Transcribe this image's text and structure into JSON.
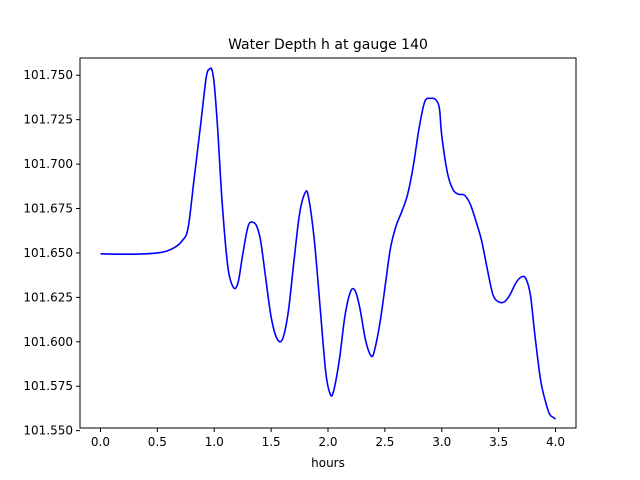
{
  "chart_data": {
    "type": "line",
    "title": "Water Depth h at gauge 140",
    "xlabel": "hours",
    "ylabel": "",
    "xlim": [
      -0.18,
      4.18
    ],
    "ylim": [
      101.5515,
      101.7597
    ],
    "x_ticks": [
      0.0,
      0.5,
      1.0,
      1.5,
      2.0,
      2.5,
      3.0,
      3.5,
      4.0
    ],
    "x_tick_labels": [
      "0.0",
      "0.5",
      "1.0",
      "1.5",
      "2.0",
      "2.5",
      "3.0",
      "3.5",
      "4.0"
    ],
    "y_ticks": [
      101.55,
      101.575,
      101.6,
      101.625,
      101.65,
      101.675,
      101.7,
      101.725,
      101.75
    ],
    "y_tick_labels": [
      "101.550",
      "101.575",
      "101.600",
      "101.625",
      "101.650",
      "101.675",
      "101.700",
      "101.725",
      "101.750"
    ],
    "grid": false,
    "legend": "none",
    "series": [
      {
        "color": "#0000ff",
        "x": [
          0.0,
          0.2,
          0.4,
          0.55,
          0.65,
          0.72,
          0.77,
          0.82,
          0.88,
          0.93,
          0.96,
          0.98,
          1.0,
          1.03,
          1.07,
          1.12,
          1.17,
          1.21,
          1.25,
          1.3,
          1.35,
          1.38,
          1.41,
          1.45,
          1.5,
          1.55,
          1.6,
          1.65,
          1.7,
          1.75,
          1.8,
          1.83,
          1.88,
          1.93,
          1.98,
          2.02,
          2.05,
          2.1,
          2.15,
          2.2,
          2.24,
          2.28,
          2.33,
          2.38,
          2.41,
          2.46,
          2.51,
          2.55,
          2.6,
          2.65,
          2.7,
          2.75,
          2.8,
          2.85,
          2.9,
          2.95,
          2.98,
          3.0,
          3.05,
          3.1,
          3.15,
          3.2,
          3.25,
          3.3,
          3.35,
          3.4,
          3.45,
          3.5,
          3.55,
          3.6,
          3.65,
          3.7,
          3.74,
          3.78,
          3.82,
          3.87,
          3.92,
          3.95,
          3.98,
          4.0
        ],
        "values": [
          101.6495,
          101.6493,
          101.6495,
          101.6505,
          101.653,
          101.657,
          101.664,
          101.69,
          101.722,
          101.749,
          101.7535,
          101.753,
          101.745,
          101.72,
          101.678,
          101.642,
          101.6305,
          101.6335,
          101.649,
          101.6655,
          101.667,
          101.664,
          101.656,
          101.637,
          101.614,
          101.602,
          101.6015,
          101.6165,
          101.645,
          101.672,
          101.684,
          101.681,
          101.657,
          101.62,
          101.583,
          101.5705,
          101.5725,
          101.59,
          101.615,
          101.6285,
          101.6285,
          101.619,
          101.601,
          101.592,
          101.5955,
          101.612,
          101.635,
          101.653,
          101.6655,
          101.6735,
          101.683,
          101.699,
          101.72,
          101.735,
          101.737,
          101.736,
          101.731,
          101.716,
          101.695,
          101.6855,
          101.683,
          101.6825,
          101.6775,
          101.668,
          101.657,
          101.641,
          101.6265,
          101.6225,
          101.6225,
          101.6265,
          101.633,
          101.6365,
          101.6355,
          101.626,
          101.603,
          101.578,
          101.5645,
          101.559,
          101.5575,
          101.5565
        ]
      }
    ]
  }
}
